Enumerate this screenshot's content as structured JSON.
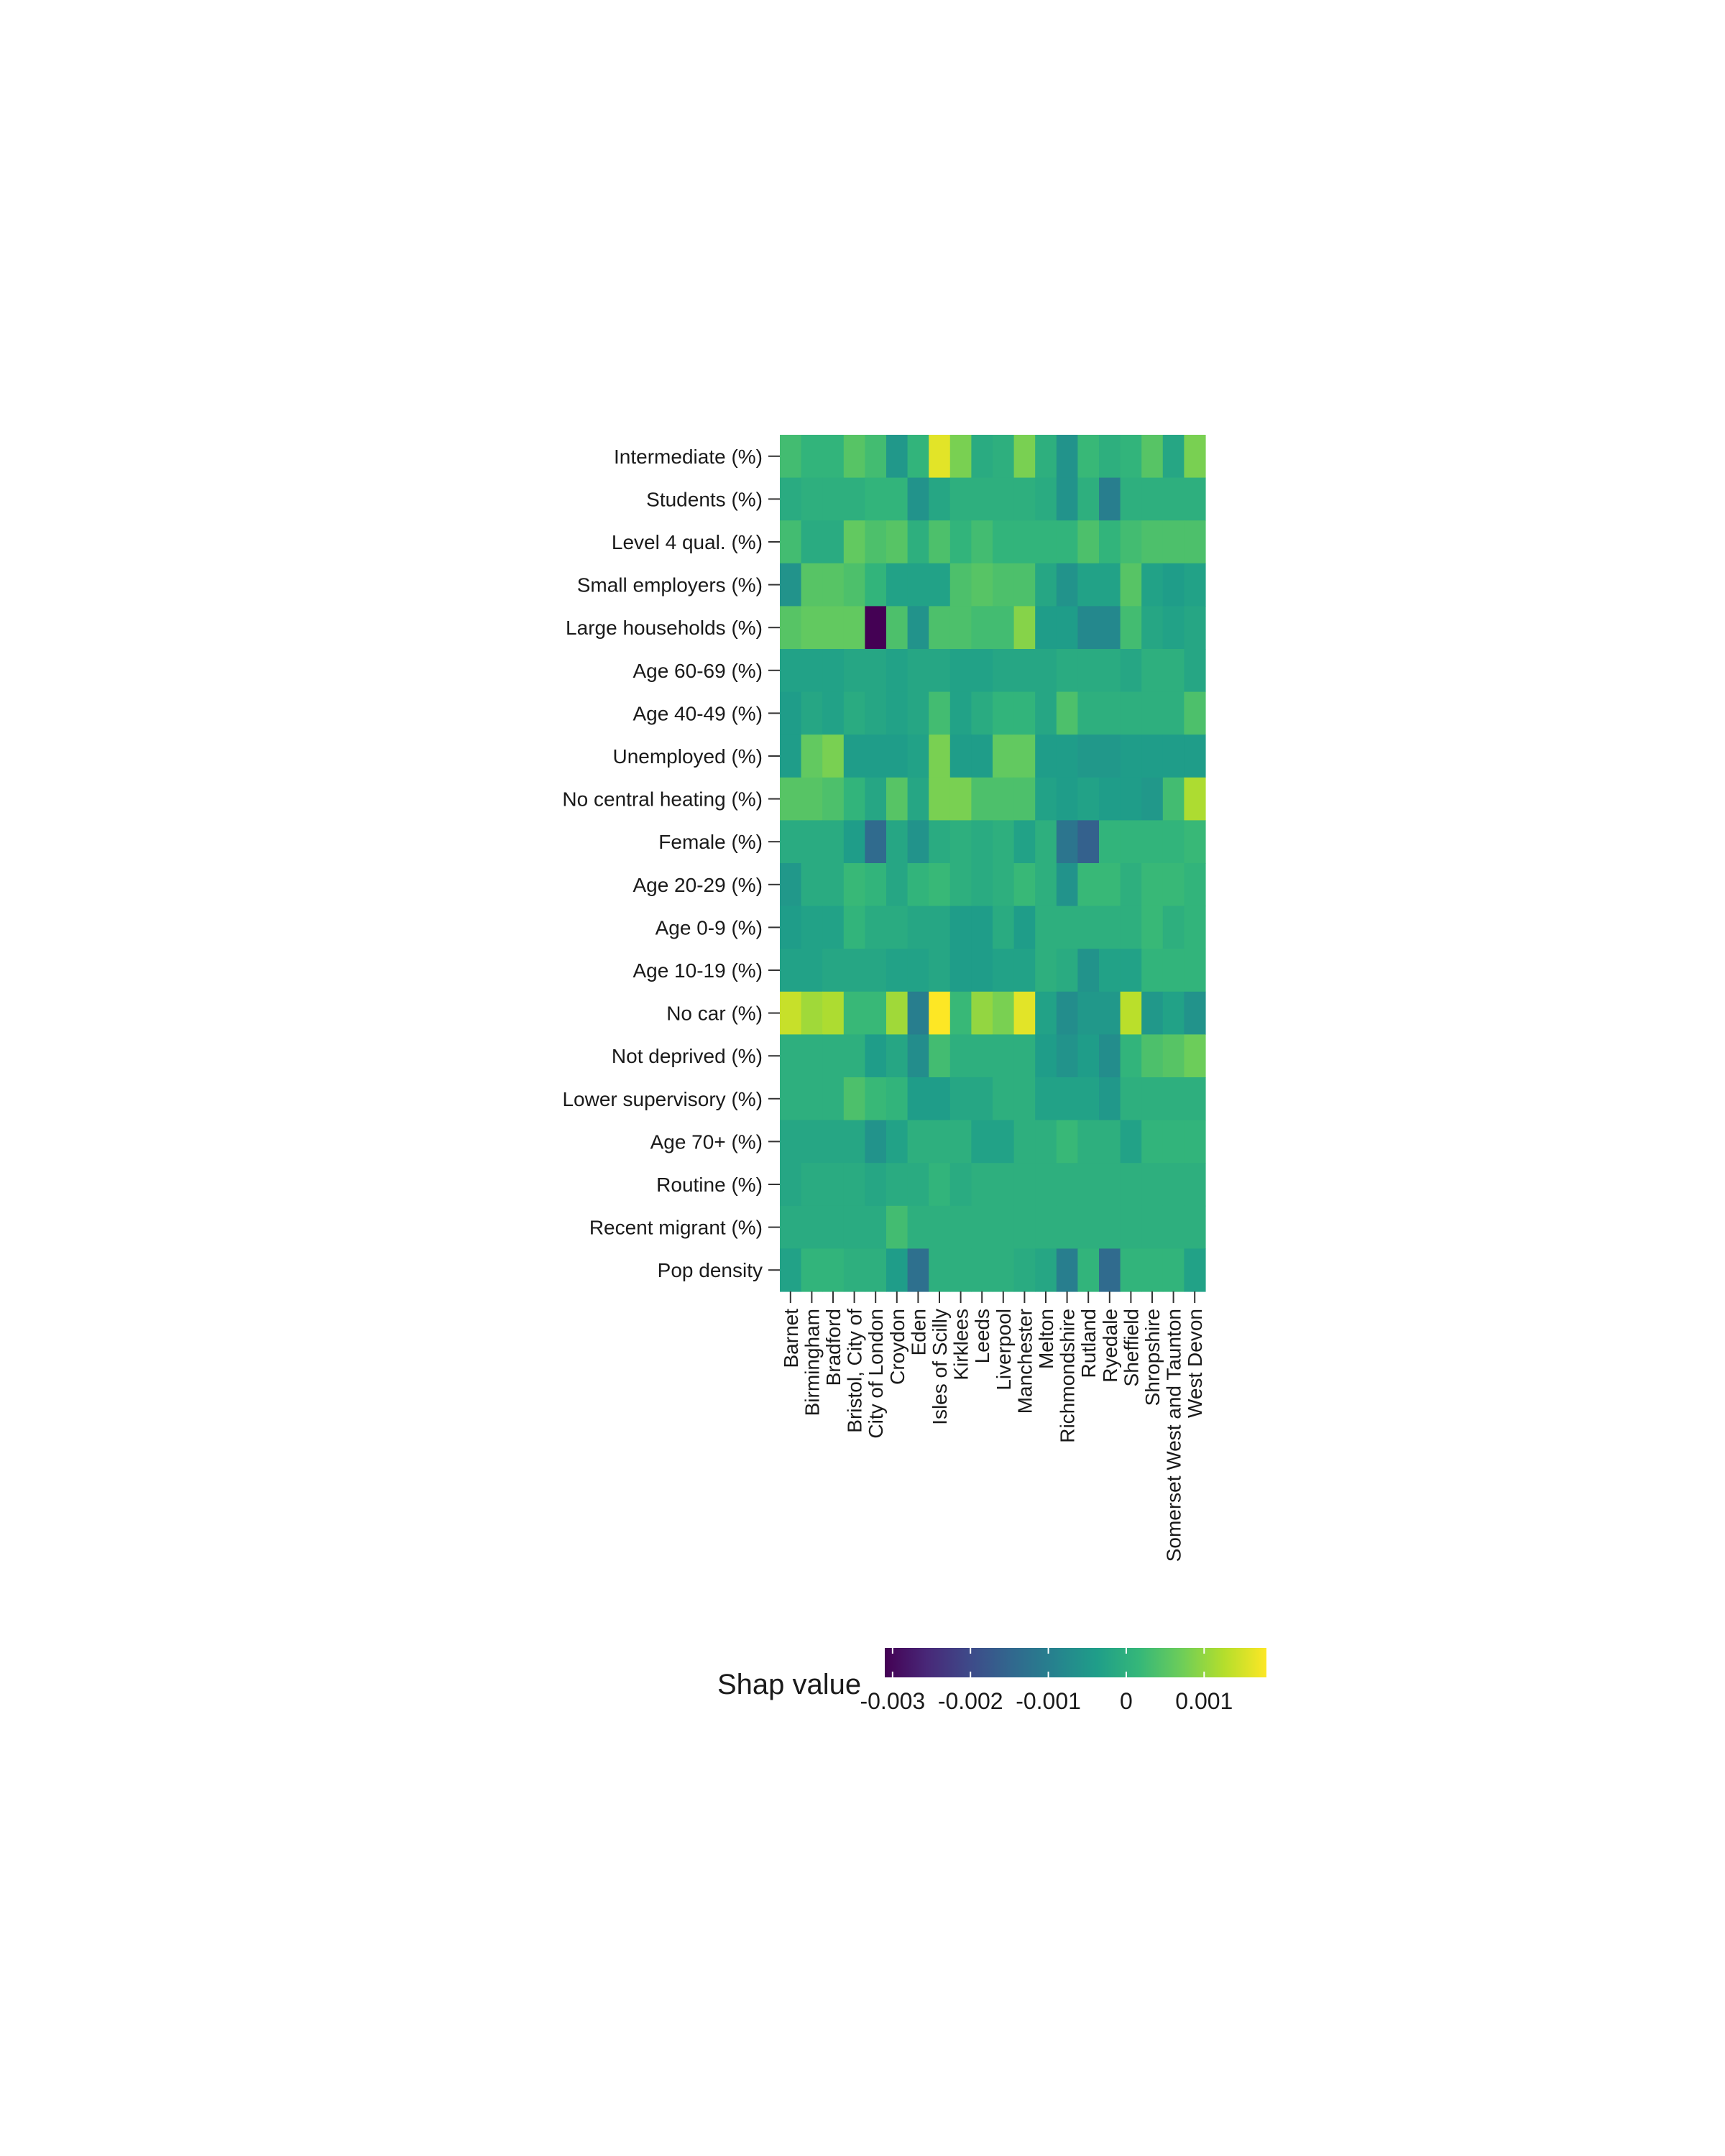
{
  "chart_data": {
    "type": "heatmap",
    "title": "",
    "xlabel": "",
    "ylabel": "",
    "legend": {
      "title": "Shap value",
      "position": "bottom",
      "range": [
        -0.0031,
        0.0018
      ],
      "ticks": [
        -0.003,
        -0.002,
        -0.001,
        0,
        0.001
      ],
      "tick_labels": [
        "-0.003",
        "-0.002",
        "-0.001",
        "0",
        "0.001"
      ],
      "palette": "viridis"
    },
    "grid": false,
    "columns": [
      "Barnet",
      "Birmingham",
      "Bradford",
      "Bristol, City of",
      "City of London",
      "Croydon",
      "Eden",
      "Isles of Scilly",
      "Kirklees",
      "Leeds",
      "Liverpool",
      "Manchester",
      "Melton",
      "Richmondshire",
      "Rutland",
      "Ryedale",
      "Sheffield",
      "Shropshire",
      "Somerset West and Taunton",
      "West Devon"
    ],
    "rows": [
      "Intermediate (%)",
      "Students (%)",
      "Level 4 qual. (%)",
      "Small employers (%)",
      "Large households (%)",
      "Age 60-69 (%)",
      "Age 40-49 (%)",
      "Unemployed (%)",
      "No central heating (%)",
      "Female (%)",
      "Age 20-29 (%)",
      "Age 0-9 (%)",
      "Age 10-19 (%)",
      "No car (%)",
      "Not deprived (%)",
      "Lower supervisory (%)",
      "Age 70+ (%)",
      "Routine (%)",
      "Recent migrant (%)",
      "Pop density"
    ],
    "values": [
      [
        0.0003,
        0.0001,
        0.0001,
        0.0005,
        0.0003,
        -0.0005,
        0.0001,
        0.0016,
        0.0008,
        -0.0001,
        0.0,
        0.0008,
        0.0,
        -0.0006,
        0.0002,
        0.0,
        0.0001,
        0.0005,
        -0.0002,
        0.0008
      ],
      [
        -0.0001,
        0.0,
        0.0,
        0.0,
        0.0001,
        0.0001,
        -0.0006,
        -0.0002,
        0.0,
        0.0,
        0.0,
        0.0,
        -0.0001,
        -0.0006,
        0.0,
        -0.001,
        0.0,
        0.0,
        0.0,
        0.0
      ],
      [
        0.0003,
        -0.0001,
        -0.0001,
        0.0006,
        0.0004,
        0.0005,
        0.0,
        0.0004,
        0.0001,
        0.0003,
        0.0001,
        0.0001,
        0.0001,
        0.0001,
        0.0004,
        0.0001,
        0.0003,
        0.0004,
        0.0004,
        0.0004
      ],
      [
        -0.0006,
        0.0005,
        0.0005,
        0.0004,
        0.0001,
        -0.0003,
        -0.0003,
        -0.0003,
        0.0004,
        0.0005,
        0.0004,
        0.0004,
        -0.0002,
        -0.0006,
        -0.0003,
        -0.0003,
        0.0005,
        -0.0003,
        -0.0004,
        -0.0003
      ],
      [
        0.0005,
        0.0006,
        0.0006,
        0.0006,
        -0.0031,
        0.0004,
        -0.0006,
        0.0004,
        0.0004,
        0.0003,
        0.0003,
        0.0009,
        -0.0004,
        -0.0004,
        -0.0008,
        -0.0008,
        0.0003,
        -0.0002,
        -0.0003,
        -0.0002
      ],
      [
        -0.0003,
        -0.0003,
        -0.0003,
        -0.0002,
        -0.0002,
        -0.0003,
        -0.0002,
        -0.0002,
        -0.0003,
        -0.0003,
        -0.0002,
        -0.0002,
        -0.0002,
        -0.0001,
        -0.0001,
        -0.0001,
        -0.0002,
        0.0,
        0.0,
        -0.0002
      ],
      [
        -0.0004,
        -0.0002,
        -0.0003,
        -0.0001,
        -0.0002,
        -0.0003,
        -0.0002,
        0.0003,
        -0.0003,
        -0.0001,
        0.0001,
        0.0001,
        -0.0002,
        0.0004,
        0.0,
        0.0,
        0.0,
        0.0,
        0.0,
        0.0004
      ],
      [
        -0.0004,
        0.0006,
        0.0008,
        -0.0004,
        -0.0004,
        -0.0004,
        -0.0003,
        0.0008,
        -0.0004,
        -0.0004,
        0.0006,
        0.0006,
        -0.0004,
        -0.0004,
        -0.0005,
        -0.0005,
        -0.0004,
        -0.0004,
        -0.0004,
        -0.0004
      ],
      [
        0.0005,
        0.0005,
        0.0004,
        0.0001,
        -0.0002,
        0.0005,
        -0.0002,
        0.0008,
        0.0008,
        0.0004,
        0.0004,
        0.0004,
        -0.0003,
        -0.0004,
        -0.0003,
        -0.0004,
        -0.0004,
        -0.0005,
        0.0003,
        0.0012
      ],
      [
        -0.0001,
        -0.0001,
        -0.0001,
        -0.0004,
        -0.0014,
        -0.0002,
        -0.0006,
        -0.0001,
        0.0,
        -0.0001,
        0.0,
        -0.0003,
        0.0,
        -0.0012,
        -0.0016,
        0.0001,
        0.0001,
        0.0001,
        0.0001,
        0.0002
      ],
      [
        -0.0005,
        -0.0001,
        -0.0001,
        0.0002,
        0.0001,
        -0.0002,
        0.0001,
        0.0002,
        0.0,
        -0.0001,
        0.0,
        0.0002,
        0.0,
        -0.0006,
        0.0002,
        0.0002,
        0.0,
        0.0002,
        0.0002,
        0.0001
      ],
      [
        -0.0004,
        -0.0003,
        -0.0003,
        0.0001,
        -0.0001,
        -0.0001,
        -0.0002,
        -0.0002,
        -0.0004,
        -0.0004,
        -0.0001,
        -0.0004,
        0.0,
        0.0,
        0.0,
        0.0,
        0.0,
        0.0002,
        0.0,
        0.0001
      ],
      [
        -0.0003,
        -0.0003,
        -0.0002,
        -0.0002,
        -0.0002,
        -0.0003,
        -0.0003,
        -0.0002,
        -0.0004,
        -0.0004,
        -0.0003,
        -0.0003,
        0.0,
        -0.0001,
        -0.0006,
        -0.0003,
        -0.0003,
        0.0001,
        0.0001,
        0.0001
      ],
      [
        0.0014,
        0.0011,
        0.0012,
        0.0002,
        0.0002,
        0.0011,
        -0.001,
        0.0018,
        0.0002,
        0.001,
        0.0008,
        0.0016,
        -0.0003,
        -0.0007,
        -0.0005,
        -0.0005,
        0.0013,
        -0.0005,
        -0.0003,
        -0.0006
      ],
      [
        0.0,
        0.0,
        0.0,
        0.0,
        -0.0004,
        -0.0002,
        -0.0007,
        0.0003,
        0.0,
        0.0,
        0.0,
        0.0,
        -0.0004,
        -0.0006,
        -0.0004,
        -0.0007,
        0.0001,
        0.0004,
        0.0005,
        0.0007
      ],
      [
        0.0,
        0.0,
        0.0,
        0.0004,
        0.0002,
        0.0001,
        -0.0004,
        -0.0004,
        -0.0002,
        -0.0002,
        0.0,
        0.0,
        -0.0003,
        -0.0003,
        -0.0003,
        -0.0005,
        0.0,
        0.0,
        0.0,
        0.0
      ],
      [
        -0.0002,
        -0.0002,
        -0.0002,
        -0.0002,
        -0.0006,
        -0.0003,
        0.0,
        0.0,
        0.0,
        -0.0003,
        -0.0003,
        0.0,
        0.0,
        0.0002,
        0.0,
        0.0,
        -0.0003,
        0.0001,
        0.0001,
        0.0001
      ],
      [
        -0.0002,
        -0.0001,
        -0.0001,
        -0.0001,
        -0.0002,
        -0.0001,
        -0.0001,
        0.0001,
        -0.0001,
        0.0,
        0.0,
        0.0,
        0.0,
        0.0,
        0.0,
        0.0,
        0.0,
        0.0,
        0.0,
        0.0
      ],
      [
        -0.0001,
        -0.0001,
        -0.0001,
        -0.0001,
        -0.0001,
        0.0003,
        0.0,
        0.0,
        0.0,
        0.0,
        0.0,
        0.0,
        0.0,
        0.0,
        0.0,
        0.0,
        0.0,
        0.0,
        0.0,
        0.0
      ],
      [
        -0.0003,
        0.0001,
        0.0001,
        0.0,
        0.0,
        -0.0004,
        -0.0013,
        0.0,
        0.0,
        0.0,
        0.0,
        -0.0001,
        -0.0002,
        -0.001,
        0.0001,
        -0.0014,
        0.0001,
        0.0001,
        0.0001,
        -0.0003
      ]
    ]
  }
}
